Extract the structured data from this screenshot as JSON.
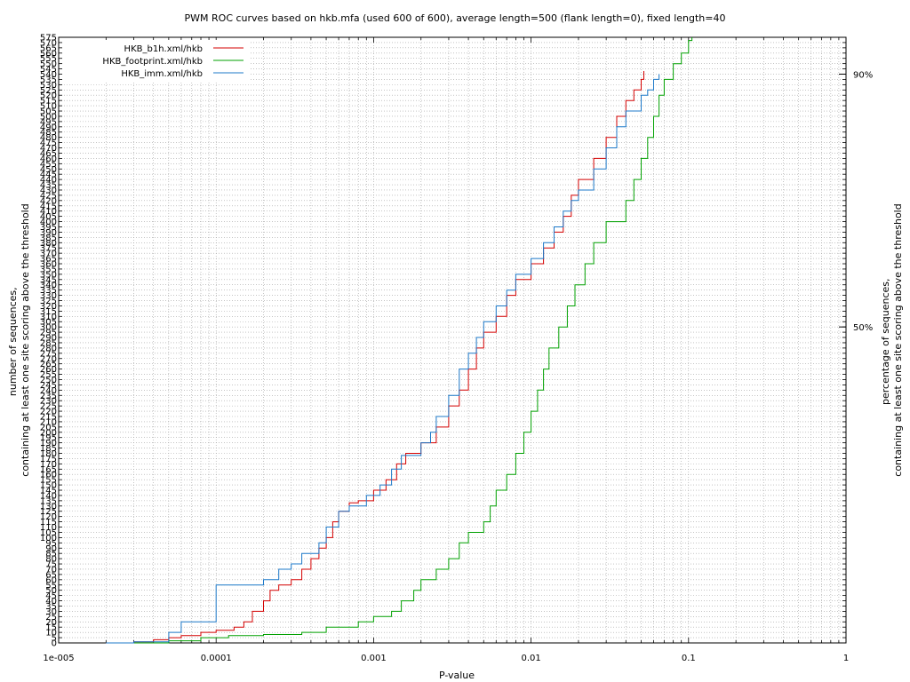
{
  "chart_data": {
    "type": "line",
    "title": "PWM ROC curves based on hkb.mfa (used 600 of 600), average length=500 (flank length=0), fixed length=40",
    "xlabel": "P-value",
    "ylabel_left": [
      "number of sequences,",
      "containing at least one site scoring above the threshold"
    ],
    "ylabel_right": [
      "percentage of sequences,",
      "containing at least one site scoring above the threshold"
    ],
    "x_scale": "log",
    "xlim": [
      1e-05,
      1
    ],
    "ylim": [
      0,
      575
    ],
    "x_ticks": [
      {
        "value": 1e-05,
        "label": "1e-005"
      },
      {
        "value": 0.0001,
        "label": "0.0001"
      },
      {
        "value": 0.001,
        "label": "0.001"
      },
      {
        "value": 0.01,
        "label": "0.01"
      },
      {
        "value": 0.1,
        "label": "0.1"
      },
      {
        "value": 1,
        "label": "1"
      }
    ],
    "y_tick_step": 5,
    "y2_ticks": [
      {
        "value": 300,
        "label": "50%"
      },
      {
        "value": 540,
        "label": "90%"
      }
    ],
    "grid": true,
    "legend_position": "top-left",
    "series": [
      {
        "name": "HKB_b1h.xml/hkb",
        "color": "#d40000",
        "points": [
          [
            2e-05,
            0
          ],
          [
            3e-05,
            1
          ],
          [
            4e-05,
            3
          ],
          [
            5e-05,
            5
          ],
          [
            6e-05,
            7
          ],
          [
            8e-05,
            10
          ],
          [
            0.0001,
            12
          ],
          [
            0.00013,
            15
          ],
          [
            0.00015,
            20
          ],
          [
            0.00017,
            30
          ],
          [
            0.0002,
            40
          ],
          [
            0.00022,
            50
          ],
          [
            0.00025,
            55
          ],
          [
            0.0003,
            60
          ],
          [
            0.00035,
            70
          ],
          [
            0.0004,
            80
          ],
          [
            0.00045,
            90
          ],
          [
            0.0005,
            100
          ],
          [
            0.00055,
            115
          ],
          [
            0.0006,
            125
          ],
          [
            0.0007,
            133
          ],
          [
            0.0008,
            135
          ],
          [
            0.001,
            145
          ],
          [
            0.0012,
            155
          ],
          [
            0.0014,
            170
          ],
          [
            0.0016,
            180
          ],
          [
            0.002,
            190
          ],
          [
            0.0025,
            205
          ],
          [
            0.003,
            225
          ],
          [
            0.0035,
            240
          ],
          [
            0.004,
            260
          ],
          [
            0.0045,
            280
          ],
          [
            0.005,
            295
          ],
          [
            0.006,
            310
          ],
          [
            0.007,
            330
          ],
          [
            0.008,
            345
          ],
          [
            0.01,
            360
          ],
          [
            0.012,
            375
          ],
          [
            0.014,
            390
          ],
          [
            0.016,
            405
          ],
          [
            0.018,
            425
          ],
          [
            0.02,
            440
          ],
          [
            0.025,
            460
          ],
          [
            0.03,
            480
          ],
          [
            0.035,
            500
          ],
          [
            0.04,
            515
          ],
          [
            0.045,
            525
          ],
          [
            0.05,
            535
          ],
          [
            0.052,
            543
          ]
        ]
      },
      {
        "name": "HKB_footprint.xml/hkb",
        "color": "#00a000",
        "points": [
          [
            3e-05,
            0
          ],
          [
            5e-05,
            2
          ],
          [
            8e-05,
            5
          ],
          [
            0.00012,
            7
          ],
          [
            0.0002,
            8
          ],
          [
            0.00035,
            10
          ],
          [
            0.0005,
            15
          ],
          [
            0.0008,
            20
          ],
          [
            0.001,
            25
          ],
          [
            0.0013,
            30
          ],
          [
            0.0015,
            40
          ],
          [
            0.0018,
            50
          ],
          [
            0.002,
            60
          ],
          [
            0.0025,
            70
          ],
          [
            0.003,
            80
          ],
          [
            0.0035,
            95
          ],
          [
            0.004,
            105
          ],
          [
            0.005,
            115
          ],
          [
            0.0055,
            130
          ],
          [
            0.006,
            145
          ],
          [
            0.007,
            160
          ],
          [
            0.008,
            180
          ],
          [
            0.009,
            200
          ],
          [
            0.01,
            220
          ],
          [
            0.011,
            240
          ],
          [
            0.012,
            260
          ],
          [
            0.013,
            280
          ],
          [
            0.015,
            300
          ],
          [
            0.017,
            320
          ],
          [
            0.019,
            340
          ],
          [
            0.022,
            360
          ],
          [
            0.025,
            380
          ],
          [
            0.03,
            400
          ],
          [
            0.04,
            420
          ],
          [
            0.045,
            440
          ],
          [
            0.05,
            460
          ],
          [
            0.055,
            480
          ],
          [
            0.06,
            500
          ],
          [
            0.065,
            520
          ],
          [
            0.07,
            535
          ],
          [
            0.08,
            550
          ],
          [
            0.09,
            560
          ],
          [
            0.1,
            572
          ],
          [
            0.105,
            575
          ]
        ]
      },
      {
        "name": "HKB_imm.xml/hkb",
        "color": "#1c78c8",
        "points": [
          [
            2e-05,
            0
          ],
          [
            3e-05,
            1
          ],
          [
            5e-05,
            10
          ],
          [
            6e-05,
            20
          ],
          [
            0.0001,
            25
          ],
          [
            0.0001,
            55
          ],
          [
            0.0002,
            60
          ],
          [
            0.00025,
            70
          ],
          [
            0.0003,
            75
          ],
          [
            0.00035,
            85
          ],
          [
            0.00045,
            95
          ],
          [
            0.0005,
            110
          ],
          [
            0.0006,
            125
          ],
          [
            0.0007,
            130
          ],
          [
            0.0009,
            140
          ],
          [
            0.0011,
            150
          ],
          [
            0.0013,
            165
          ],
          [
            0.0015,
            178
          ],
          [
            0.002,
            190
          ],
          [
            0.0023,
            200
          ],
          [
            0.0025,
            215
          ],
          [
            0.003,
            235
          ],
          [
            0.0035,
            260
          ],
          [
            0.004,
            275
          ],
          [
            0.0045,
            290
          ],
          [
            0.005,
            305
          ],
          [
            0.006,
            320
          ],
          [
            0.007,
            335
          ],
          [
            0.008,
            350
          ],
          [
            0.01,
            365
          ],
          [
            0.012,
            380
          ],
          [
            0.014,
            395
          ],
          [
            0.016,
            410
          ],
          [
            0.018,
            420
          ],
          [
            0.02,
            430
          ],
          [
            0.025,
            450
          ],
          [
            0.03,
            470
          ],
          [
            0.035,
            490
          ],
          [
            0.04,
            505
          ],
          [
            0.05,
            520
          ],
          [
            0.055,
            525
          ],
          [
            0.06,
            535
          ],
          [
            0.065,
            540
          ]
        ]
      }
    ]
  }
}
